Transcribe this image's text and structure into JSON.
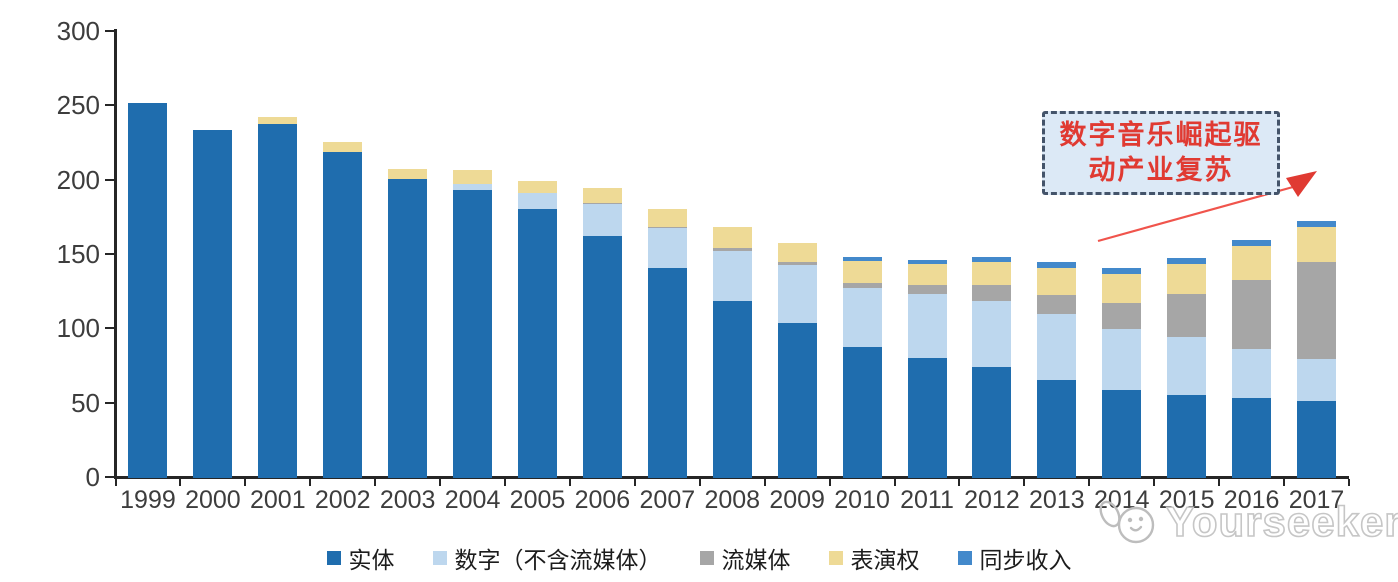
{
  "chart_data": {
    "type": "bar",
    "stacked": true,
    "title": "",
    "xlabel": "",
    "ylabel": "",
    "categories": [
      "1999",
      "2000",
      "2001",
      "2002",
      "2003",
      "2004",
      "2005",
      "2006",
      "2007",
      "2008",
      "2009",
      "2010",
      "2011",
      "2012",
      "2013",
      "2014",
      "2015",
      "2016",
      "2017"
    ],
    "series": [
      {
        "name": "实体",
        "color": "#1f6dae",
        "values": [
          252,
          234,
          238,
          219,
          201,
          194,
          181,
          163,
          141,
          119,
          104,
          88,
          81,
          75,
          66,
          59,
          56,
          54,
          52
        ]
      },
      {
        "name": "数字（不含流媒体）",
        "color": "#bdd7ee",
        "values": [
          0,
          0,
          0,
          0,
          0,
          4,
          11,
          21,
          27,
          34,
          39,
          40,
          43,
          44,
          44,
          41,
          39,
          33,
          28
        ]
      },
      {
        "name": "流媒体",
        "color": "#a6a6a6",
        "values": [
          0,
          0,
          0,
          0,
          0,
          0,
          0,
          1,
          1,
          2,
          2,
          3,
          6,
          11,
          13,
          18,
          29,
          46,
          65
        ]
      },
      {
        "name": "表演权",
        "color": "#eeda96",
        "values": [
          0,
          0,
          5,
          7,
          7,
          9,
          8,
          10,
          12,
          14,
          13,
          15,
          14,
          15,
          18,
          19,
          20,
          23,
          24
        ]
      },
      {
        "name": "同步收入",
        "color": "#4389cb",
        "values": [
          0,
          0,
          0,
          0,
          0,
          0,
          0,
          0,
          0,
          0,
          0,
          3,
          3,
          4,
          4,
          4,
          4,
          4,
          4
        ]
      }
    ],
    "ylim": [
      0,
      300
    ],
    "yticks": [
      0,
      50,
      100,
      150,
      200,
      250,
      300
    ],
    "grid": false,
    "legend_position": "bottom"
  },
  "annotation": {
    "line1": "数字音乐崛起驱",
    "line2": "动产业复苏",
    "text_color": "#e03a32",
    "box_fill": "#dce9f6",
    "box_border": "#44546a",
    "arrow_color": "#f0544c"
  },
  "watermark": {
    "text": "Yourseeker",
    "icon": "cat-logo-icon",
    "color": "#c6c6c6"
  },
  "axis": {
    "line_color": "#262626",
    "label_color": "#3d3d3d"
  }
}
